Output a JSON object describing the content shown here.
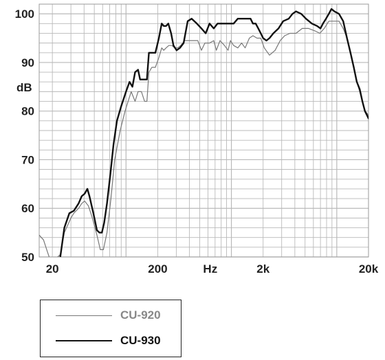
{
  "chart_data": {
    "type": "line",
    "xlabel": "Hz",
    "ylabel": "dB",
    "xscale": "log",
    "xlim": [
      15,
      20000
    ],
    "ylim": [
      50,
      102
    ],
    "x_ticks": [
      {
        "value": 20,
        "label": "20"
      },
      {
        "value": 200,
        "label": "200"
      },
      {
        "value": 2000,
        "label": "2k"
      },
      {
        "value": 20000,
        "label": "20k"
      }
    ],
    "y_ticks": [
      {
        "value": 50,
        "label": "50"
      },
      {
        "value": 60,
        "label": "60"
      },
      {
        "value": 70,
        "label": "70"
      },
      {
        "value": 80,
        "label": "80"
      },
      {
        "value": 90,
        "label": "90"
      },
      {
        "value": 100,
        "label": "100"
      }
    ],
    "grid": true,
    "legend_position": "below",
    "series": [
      {
        "name": "CU-920",
        "color": "#777777",
        "width": 1.2,
        "points": [
          [
            15,
            54.5
          ],
          [
            16.5,
            53.5
          ],
          [
            18,
            51
          ],
          [
            19,
            49.5
          ],
          [
            20,
            49
          ],
          [
            23.8,
            50.5
          ],
          [
            26,
            55
          ],
          [
            30,
            58
          ],
          [
            32,
            59
          ],
          [
            35.5,
            60
          ],
          [
            38,
            61
          ],
          [
            40.5,
            61.5
          ],
          [
            44,
            60.5
          ],
          [
            48,
            58
          ],
          [
            53,
            54.5
          ],
          [
            57,
            51.5
          ],
          [
            61,
            51.5
          ],
          [
            66,
            55
          ],
          [
            72,
            62
          ],
          [
            78,
            70
          ],
          [
            88,
            76
          ],
          [
            98,
            80
          ],
          [
            112,
            84
          ],
          [
            122,
            82
          ],
          [
            130,
            84
          ],
          [
            140,
            84
          ],
          [
            150,
            82
          ],
          [
            158,
            82
          ],
          [
            165,
            88
          ],
          [
            176,
            89
          ],
          [
            190,
            89
          ],
          [
            205,
            91
          ],
          [
            218,
            93
          ],
          [
            228,
            92.5
          ],
          [
            240,
            93
          ],
          [
            255,
            93.5
          ],
          [
            272,
            93.5
          ],
          [
            290,
            93
          ],
          [
            310,
            93
          ],
          [
            330,
            93.5
          ],
          [
            360,
            94.5
          ],
          [
            420,
            94.5
          ],
          [
            480,
            94.5
          ],
          [
            520,
            92.5
          ],
          [
            560,
            94
          ],
          [
            620,
            94
          ],
          [
            680,
            94.5
          ],
          [
            720,
            92.5
          ],
          [
            780,
            94.5
          ],
          [
            860,
            93.5
          ],
          [
            930,
            92.5
          ],
          [
            980,
            94.5
          ],
          [
            1050,
            93.5
          ],
          [
            1150,
            93
          ],
          [
            1250,
            94
          ],
          [
            1350,
            93
          ],
          [
            1480,
            95
          ],
          [
            1600,
            95.5
          ],
          [
            1750,
            95
          ],
          [
            1900,
            95
          ],
          [
            2050,
            93
          ],
          [
            2300,
            91.5
          ],
          [
            2600,
            92.5
          ],
          [
            2900,
            94.5
          ],
          [
            3200,
            95.5
          ],
          [
            3600,
            96
          ],
          [
            4100,
            96
          ],
          [
            4700,
            97
          ],
          [
            5400,
            97
          ],
          [
            6200,
            96.5
          ],
          [
            6900,
            96
          ],
          [
            7600,
            97
          ],
          [
            8400,
            98.5
          ],
          [
            9500,
            98.5
          ],
          [
            10500,
            98.5
          ],
          [
            11500,
            97
          ],
          [
            12500,
            95
          ],
          [
            13500,
            92
          ],
          [
            14500,
            89
          ],
          [
            15500,
            86
          ],
          [
            16500,
            84
          ],
          [
            17500,
            82
          ],
          [
            18500,
            80
          ],
          [
            19500,
            79.5
          ],
          [
            20000,
            79
          ]
        ]
      },
      {
        "name": "CU-930",
        "color": "#111111",
        "width": 2.4,
        "points": [
          [
            23.8,
            50
          ],
          [
            26,
            56
          ],
          [
            29,
            59
          ],
          [
            32,
            59.5
          ],
          [
            35.5,
            61
          ],
          [
            38,
            62.5
          ],
          [
            40.5,
            63
          ],
          [
            43,
            64
          ],
          [
            45,
            62.5
          ],
          [
            49,
            59
          ],
          [
            53,
            55.5
          ],
          [
            56,
            55
          ],
          [
            59,
            55
          ],
          [
            62,
            57
          ],
          [
            66,
            61
          ],
          [
            71,
            67
          ],
          [
            76,
            73
          ],
          [
            82,
            78
          ],
          [
            90,
            81
          ],
          [
            100,
            84
          ],
          [
            108,
            86
          ],
          [
            115,
            85
          ],
          [
            122,
            88
          ],
          [
            130,
            88.5
          ],
          [
            136,
            86.5
          ],
          [
            142,
            86.5
          ],
          [
            150,
            86.5
          ],
          [
            158,
            86.5
          ],
          [
            165,
            92
          ],
          [
            180,
            92
          ],
          [
            190,
            92
          ],
          [
            205,
            95
          ],
          [
            218,
            98
          ],
          [
            228,
            97.5
          ],
          [
            240,
            97.5
          ],
          [
            252,
            98
          ],
          [
            268,
            96
          ],
          [
            282,
            93.5
          ],
          [
            302,
            92.5
          ],
          [
            325,
            93
          ],
          [
            352,
            94
          ],
          [
            385,
            98.5
          ],
          [
            420,
            99
          ],
          [
            470,
            98
          ],
          [
            520,
            97
          ],
          [
            570,
            96
          ],
          [
            620,
            98
          ],
          [
            680,
            97
          ],
          [
            740,
            98
          ],
          [
            820,
            98
          ],
          [
            930,
            98
          ],
          [
            1050,
            98
          ],
          [
            1150,
            99
          ],
          [
            1250,
            99
          ],
          [
            1400,
            99
          ],
          [
            1520,
            99
          ],
          [
            1600,
            98
          ],
          [
            1700,
            98
          ],
          [
            1800,
            97
          ],
          [
            1900,
            96
          ],
          [
            2000,
            95
          ],
          [
            2150,
            94.5
          ],
          [
            2300,
            95
          ],
          [
            2500,
            96
          ],
          [
            2800,
            97
          ],
          [
            3100,
            98.5
          ],
          [
            3500,
            99
          ],
          [
            3800,
            100
          ],
          [
            4100,
            100.5
          ],
          [
            4600,
            100
          ],
          [
            5100,
            99
          ],
          [
            5800,
            98
          ],
          [
            6500,
            97.5
          ],
          [
            7000,
            97
          ],
          [
            7400,
            98
          ],
          [
            7900,
            99
          ],
          [
            8400,
            100
          ],
          [
            8900,
            101
          ],
          [
            9500,
            100.5
          ],
          [
            10500,
            100
          ],
          [
            11500,
            98.5
          ],
          [
            12500,
            95
          ],
          [
            13500,
            92
          ],
          [
            14500,
            89
          ],
          [
            15500,
            86
          ],
          [
            16500,
            84.5
          ],
          [
            17500,
            82
          ],
          [
            18500,
            80
          ],
          [
            19500,
            79
          ],
          [
            20000,
            78.5
          ]
        ]
      }
    ]
  }
}
